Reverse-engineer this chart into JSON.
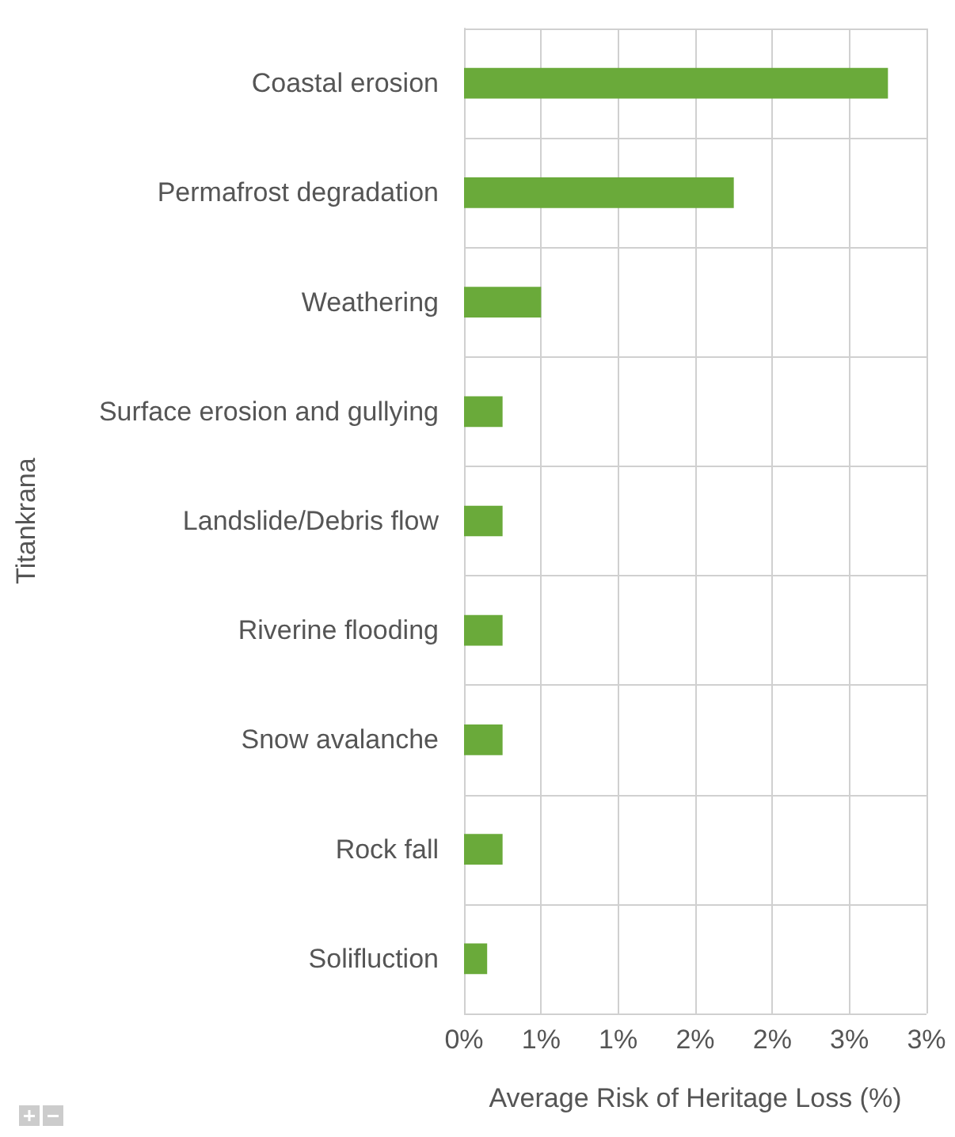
{
  "chart_data": {
    "type": "bar",
    "orientation": "horizontal",
    "ylabel": "Titankrana",
    "xlabel": "Average Risk of Heritage Loss (%)",
    "categories": [
      "Coastal erosion",
      "Permafrost degradation",
      "Weathering",
      "Surface erosion and gullying",
      "Landslide/Debris flow",
      "Riverine flooding",
      "Snow avalanche",
      "Rock fall",
      "Solifluction"
    ],
    "values": [
      2.75,
      1.75,
      0.5,
      0.25,
      0.25,
      0.25,
      0.25,
      0.25,
      0.15
    ],
    "color": "#6aaa3a",
    "xlim": [
      0,
      3
    ],
    "xticks": [
      {
        "value": 0,
        "label": "0%"
      },
      {
        "value": 0.5,
        "label": "1%"
      },
      {
        "value": 1,
        "label": "1%"
      },
      {
        "value": 1.5,
        "label": "2%"
      },
      {
        "value": 2,
        "label": "2%"
      },
      {
        "value": 2.5,
        "label": "3%"
      },
      {
        "value": 3,
        "label": "3%"
      }
    ],
    "grid": true
  }
}
